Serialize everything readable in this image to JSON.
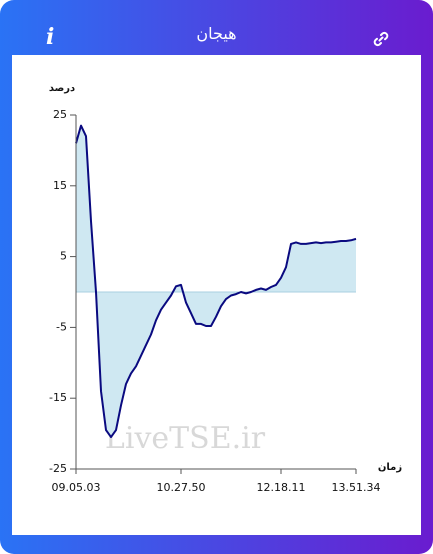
{
  "header": {
    "info": "i",
    "title": "هیجان"
  },
  "chart_data": {
    "type": "area",
    "y_label": "درصد",
    "x_label": "زمان",
    "watermark": "LiveTSE.ir",
    "categories": [
      "09.05.03",
      null,
      null,
      null,
      null,
      null,
      null,
      null,
      null,
      null,
      null,
      null,
      null,
      null,
      null,
      null,
      null,
      null,
      null,
      null,
      null,
      "10.27.50",
      null,
      null,
      null,
      null,
      null,
      null,
      null,
      null,
      null,
      null,
      null,
      null,
      null,
      null,
      null,
      null,
      null,
      null,
      null,
      "12.18.11",
      null,
      null,
      null,
      null,
      null,
      null,
      null,
      null,
      null,
      null,
      null,
      null,
      null,
      null,
      "13.51.34"
    ],
    "values": [
      21,
      23.5,
      22,
      10,
      0,
      -14,
      -19.5,
      -20.5,
      -19.5,
      -16,
      -13,
      -11.5,
      -10.5,
      -9,
      -7.5,
      -6,
      -4,
      -2.5,
      -1.5,
      -0.5,
      0.8,
      1,
      -1.5,
      -3,
      -4.5,
      -4.5,
      -4.8,
      -4.8,
      -3.5,
      -2,
      -1,
      -0.5,
      -0.3,
      0,
      -0.2,
      0,
      0.3,
      0.5,
      0.3,
      0.7,
      1,
      2,
      3.5,
      6.8,
      7,
      6.8,
      6.8,
      6.9,
      7,
      6.9,
      7,
      7,
      7.1,
      7.2,
      7.2,
      7.3,
      7.5
    ],
    "color": "#0a0a80",
    "fill_color": "#cfe8f2",
    "ylim": [
      -25,
      25
    ],
    "yticks": [
      -25,
      -15,
      -5,
      5,
      15,
      25
    ]
  }
}
